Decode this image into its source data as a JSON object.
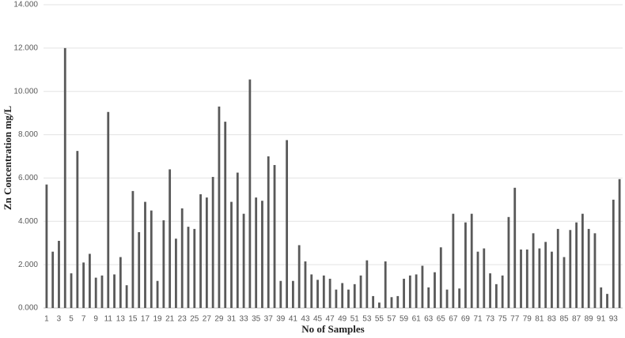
{
  "chart_data": {
    "type": "bar",
    "x_label": "No of Samples",
    "y_label": "Zn Concentration mg/L",
    "categories": [
      "1",
      null,
      "3",
      null,
      "5",
      null,
      "7",
      null,
      "9",
      null,
      "11",
      null,
      "13",
      null,
      "15",
      null,
      "17",
      null,
      "19",
      null,
      "21",
      null,
      "23",
      null,
      "25",
      null,
      "27",
      null,
      "29",
      null,
      "31",
      null,
      "33",
      null,
      "35",
      null,
      "37",
      null,
      "39",
      null,
      "41",
      null,
      "43",
      null,
      "45",
      null,
      "47",
      null,
      "49",
      null,
      "51",
      null,
      "53",
      null,
      "55",
      null,
      "57",
      null,
      "59",
      null,
      "61",
      null,
      "63",
      null,
      "65",
      null,
      "67",
      null,
      "69",
      null,
      "71",
      null,
      "73",
      null,
      "75",
      null,
      "77",
      null,
      "79",
      null,
      "81",
      null,
      "83",
      null,
      "85",
      null,
      "87",
      null,
      "89",
      null,
      "91",
      null,
      "93",
      null
    ],
    "values": [
      5.7,
      2.6,
      3.1,
      12.0,
      1.6,
      7.25,
      2.1,
      2.5,
      1.4,
      1.5,
      9.05,
      1.55,
      2.35,
      1.05,
      5.4,
      3.5,
      4.9,
      4.5,
      1.25,
      4.05,
      6.4,
      3.2,
      4.6,
      3.75,
      3.65,
      5.25,
      5.1,
      6.05,
      9.3,
      8.6,
      4.9,
      6.25,
      4.35,
      10.55,
      5.1,
      4.95,
      7.0,
      6.6,
      1.25,
      7.75,
      1.25,
      2.9,
      2.15,
      1.55,
      1.3,
      1.5,
      1.35,
      0.85,
      1.15,
      0.85,
      1.1,
      1.5,
      2.2,
      0.55,
      0.25,
      2.15,
      0.5,
      0.55,
      1.35,
      1.5,
      1.55,
      1.95,
      0.95,
      1.65,
      2.8,
      0.85,
      4.35,
      0.9,
      3.95,
      4.35,
      2.6,
      2.75,
      1.6,
      1.1,
      1.5,
      4.2,
      5.55,
      2.7,
      2.7,
      3.45,
      2.75,
      3.05,
      2.6,
      3.65,
      2.35,
      3.6,
      3.95,
      4.35,
      3.65,
      3.45,
      0.95,
      0.65,
      5.0,
      5.95
    ],
    "color": "#595959",
    "ylim": [
      0,
      14
    ],
    "yticks": [
      {
        "value": 0,
        "label": "0.000"
      },
      {
        "value": 2,
        "label": "2.000"
      },
      {
        "value": 4,
        "label": "4.000"
      },
      {
        "value": 6,
        "label": "6.000"
      },
      {
        "value": 8,
        "label": "8.000"
      },
      {
        "value": 10,
        "label": "10.000"
      },
      {
        "value": 12,
        "label": "12.000"
      },
      {
        "value": 14,
        "label": "14.000"
      }
    ],
    "grid": true
  }
}
